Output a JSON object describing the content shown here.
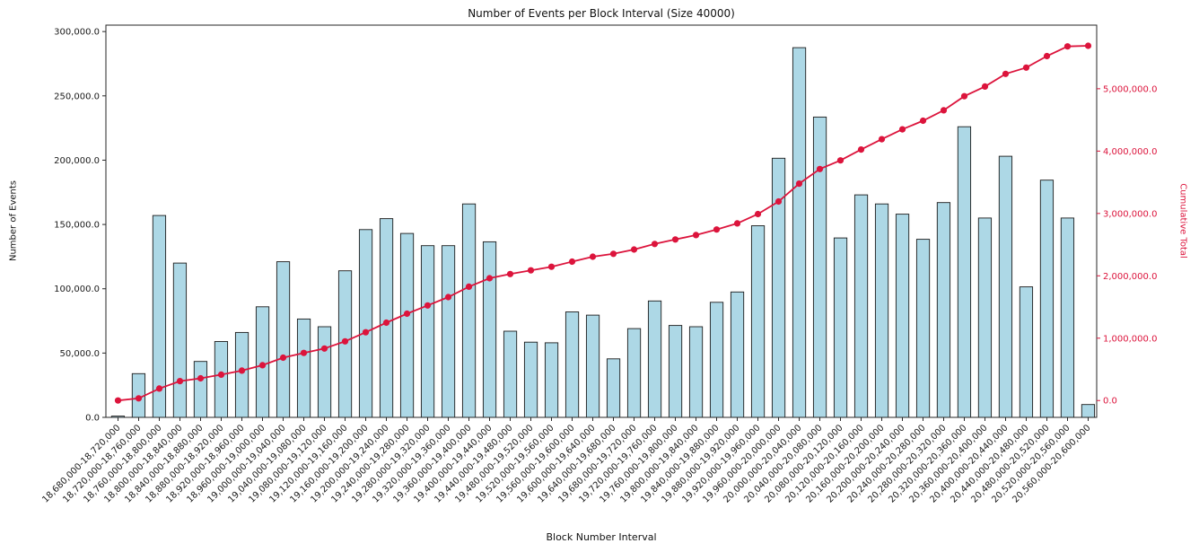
{
  "colors": {
    "bar_fill": "#add8e6",
    "bar_edge": "#1c1c1c",
    "line": "#dc143c",
    "axis": "#262626",
    "tick_label": "#1a1a1a"
  },
  "chart_data": {
    "type": "bar",
    "title": "Number of Events per Block Interval (Size 40000)",
    "xlabel": "Block Number Interval",
    "ylabel_left": "Number of Events",
    "ylabel_right": "Cumulative Total",
    "grid": false,
    "legend": "none",
    "ylim_left": [
      0,
      305000
    ],
    "ylim_right": [
      -270000,
      6020000
    ],
    "yticks_left": {
      "values": [
        0,
        50000,
        100000,
        150000,
        200000,
        250000,
        300000
      ],
      "labels": [
        "0.0",
        "50,000.0",
        "100,000.0",
        "150,000.0",
        "200,000.0",
        "250,000.0",
        "300,000.0"
      ]
    },
    "yticks_right": {
      "values": [
        0,
        1000000,
        2000000,
        3000000,
        4000000,
        5000000
      ],
      "labels": [
        "0.0",
        "1,000,000.0",
        "2,000,000.0",
        "3,000,000.0",
        "4,000,000.0",
        "5,000,000.0"
      ]
    },
    "categories": [
      "18,680,000-18,720,000",
      "18,720,000-18,760,000",
      "18,760,000-18,800,000",
      "18,800,000-18,840,000",
      "18,840,000-18,880,000",
      "18,880,000-18,920,000",
      "18,920,000-18,960,000",
      "18,960,000-19,000,000",
      "19,000,000-19,040,000",
      "19,040,000-19,080,000",
      "19,080,000-19,120,000",
      "19,120,000-19,160,000",
      "19,160,000-19,200,000",
      "19,200,000-19,240,000",
      "19,240,000-19,280,000",
      "19,280,000-19,320,000",
      "19,320,000-19,360,000",
      "19,360,000-19,400,000",
      "19,400,000-19,440,000",
      "19,440,000-19,480,000",
      "19,480,000-19,520,000",
      "19,520,000-19,560,000",
      "19,560,000-19,600,000",
      "19,600,000-19,640,000",
      "19,640,000-19,680,000",
      "19,680,000-19,720,000",
      "19,720,000-19,760,000",
      "19,760,000-19,800,000",
      "19,800,000-19,840,000",
      "19,840,000-19,880,000",
      "19,880,000-19,920,000",
      "19,920,000-19,960,000",
      "19,960,000-20,000,000",
      "20,000,000-20,040,000",
      "20,040,000-20,080,000",
      "20,080,000-20,120,000",
      "20,120,000-20,160,000",
      "20,160,000-20,200,000",
      "20,200,000-20,240,000",
      "20,240,000-20,280,000",
      "20,280,000-20,320,000",
      "20,320,000-20,360,000",
      "20,360,000-20,400,000",
      "20,400,000-20,440,000",
      "20,440,000-20,480,000",
      "20,480,000-20,520,000",
      "20,520,000-20,560,000",
      "20,560,000-20,600,000"
    ],
    "series": [
      {
        "name": "Number of Events",
        "type": "bar",
        "axis": "left",
        "values": [
          1000,
          34000,
          157000,
          120000,
          43500,
          59000,
          66000,
          86000,
          121000,
          76500,
          70500,
          114000,
          146000,
          154500,
          143000,
          133500,
          133500,
          166000,
          136500,
          67000,
          58500,
          58000,
          82000,
          79500,
          45500,
          69000,
          90500,
          71500,
          70500,
          89500,
          97500,
          149000,
          201500,
          287500,
          233500,
          139500,
          173000,
          166000,
          158000,
          138500,
          167000,
          226000,
          155000,
          203000,
          101500,
          184500,
          155000,
          10000
        ]
      },
      {
        "name": "Cumulative Total",
        "type": "line",
        "axis": "right",
        "values": [
          1000,
          35000,
          192000,
          312000,
          355500,
          414500,
          480500,
          566500,
          687500,
          764000,
          834500,
          948500,
          1094500,
          1249000,
          1392000,
          1525500,
          1659000,
          1825000,
          1961500,
          2028500,
          2087000,
          2145000,
          2227000,
          2306500,
          2352000,
          2421000,
          2511500,
          2583000,
          2653500,
          2743000,
          2840500,
          2989500,
          3191000,
          3478500,
          3712000,
          3851500,
          4024500,
          4190500,
          4348500,
          4487000,
          4654000,
          4880000,
          5035000,
          5238000,
          5339500,
          5524000,
          5679000,
          5689000
        ]
      }
    ]
  }
}
